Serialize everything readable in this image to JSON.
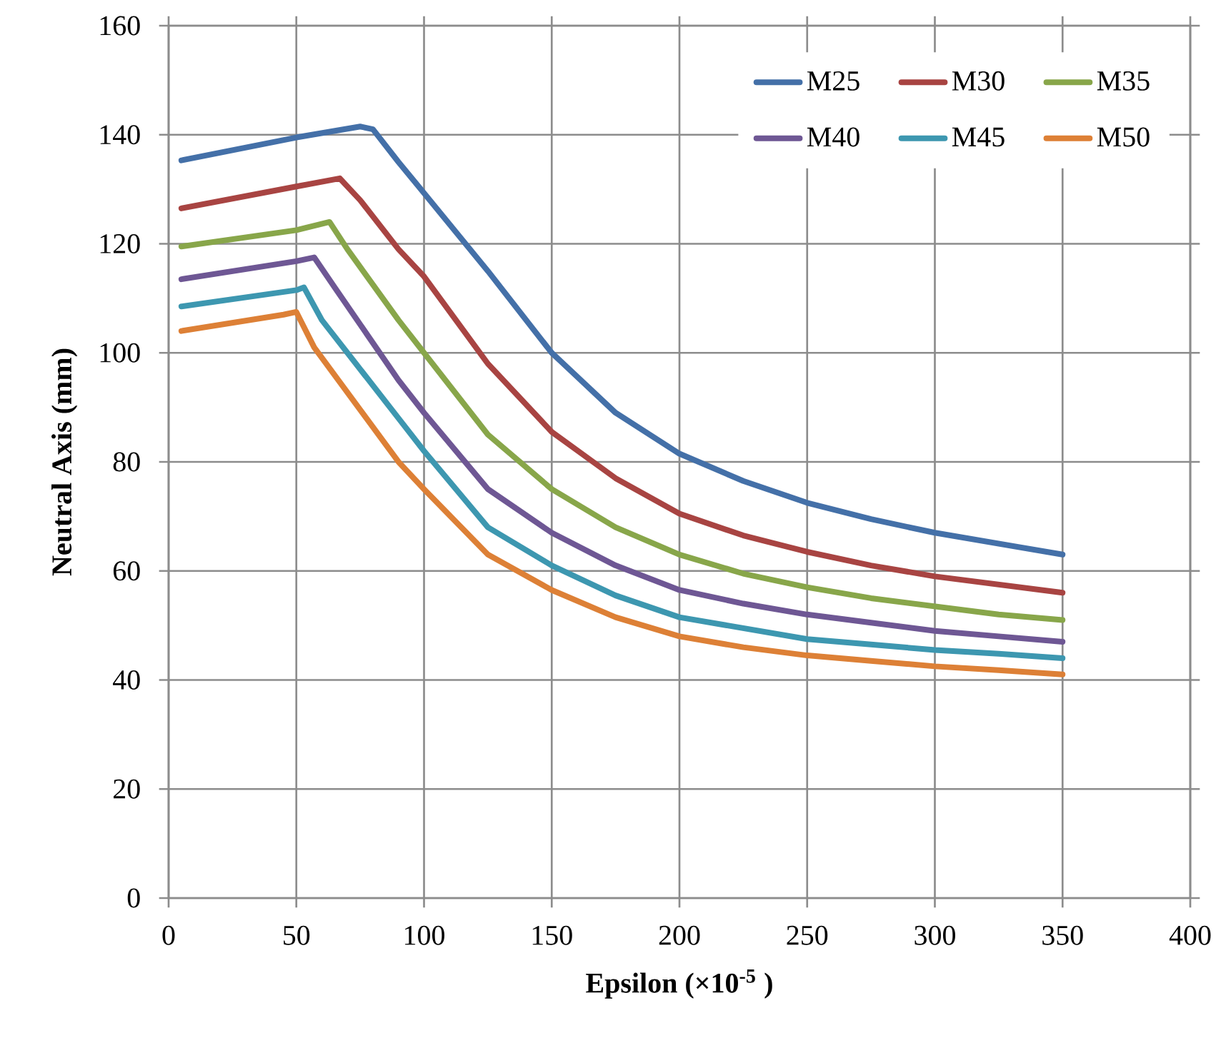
{
  "chart_data": {
    "type": "line",
    "xlabel": "Epsilon (×10$^{-5}$ )",
    "ylabel": "Neutral Axis (mm)",
    "xlim": [
      0,
      400
    ],
    "ylim": [
      0,
      160
    ],
    "xticks": [
      0,
      50,
      100,
      150,
      200,
      250,
      300,
      350,
      400
    ],
    "yticks": [
      0,
      20,
      40,
      60,
      80,
      100,
      120,
      140,
      160
    ],
    "grid": true,
    "legend": "top right",
    "marker": "none",
    "line_style": "solid",
    "series": [
      {
        "name": "M25",
        "color": "#4470a8",
        "x": [
          5,
          50,
          75,
          80,
          90,
          100,
          125,
          150,
          175,
          200,
          225,
          250,
          275,
          300,
          325,
          350
        ],
        "values": [
          135.3,
          139.5,
          141.5,
          141,
          135,
          129.3,
          115,
          100,
          89,
          81.5,
          76.5,
          72.5,
          69.5,
          67,
          65,
          63
        ]
      },
      {
        "name": "M30",
        "color": "#a84442",
        "x": [
          5,
          50,
          67,
          75,
          90,
          100,
          125,
          150,
          175,
          200,
          225,
          250,
          275,
          300,
          325,
          350
        ],
        "values": [
          126.5,
          130.5,
          132,
          128,
          119,
          114,
          98,
          85.5,
          77,
          70.5,
          66.5,
          63.5,
          61,
          59,
          57.5,
          56
        ]
      },
      {
        "name": "M35",
        "color": "#88a64a",
        "x": [
          5,
          50,
          63,
          70,
          90,
          100,
          125,
          150,
          175,
          200,
          225,
          250,
          275,
          300,
          325,
          350
        ],
        "values": [
          119.5,
          122.5,
          124,
          119,
          106,
          100,
          85,
          75,
          68,
          63,
          59.5,
          57,
          55,
          53.5,
          52,
          51
        ]
      },
      {
        "name": "M40",
        "color": "#6e5794",
        "x": [
          5,
          50,
          57,
          65,
          90,
          100,
          125,
          150,
          175,
          200,
          225,
          250,
          275,
          300,
          325,
          350
        ],
        "values": [
          113.5,
          116.8,
          117.5,
          112,
          95,
          89,
          75,
          67,
          61,
          56.5,
          54,
          52,
          50.5,
          49,
          48,
          47
        ]
      },
      {
        "name": "M45",
        "color": "#3d97b0",
        "x": [
          5,
          50,
          53,
          60,
          90,
          100,
          125,
          150,
          175,
          200,
          225,
          250,
          275,
          300,
          325,
          350
        ],
        "values": [
          108.5,
          111.5,
          112,
          106,
          88,
          82,
          68,
          61,
          55.5,
          51.5,
          49.5,
          47.5,
          46.5,
          45.5,
          44.8,
          44
        ]
      },
      {
        "name": "M50",
        "color": "#dd8036",
        "x": [
          5,
          45,
          50,
          57,
          90,
          100,
          125,
          150,
          175,
          200,
          225,
          250,
          275,
          300,
          325,
          350
        ],
        "values": [
          104,
          107,
          107.5,
          101,
          80,
          75,
          63,
          56.5,
          51.5,
          48,
          46,
          44.5,
          43.5,
          42.5,
          41.8,
          41
        ]
      }
    ]
  }
}
